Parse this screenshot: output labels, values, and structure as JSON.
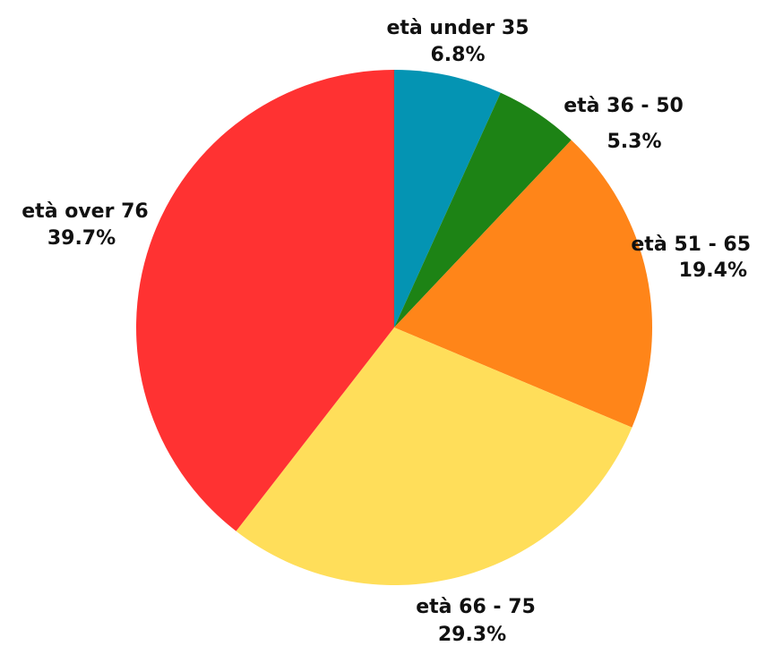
{
  "chart_data": {
    "type": "pie",
    "title": "",
    "start_angle_deg": 0,
    "direction": "clockwise",
    "slices": [
      {
        "label": "età under 35",
        "value": 6.8,
        "value_label": "6.8%",
        "color": "#0494B3"
      },
      {
        "label": "età 36 - 50",
        "value": 5.3,
        "value_label": "5.3%",
        "color": "#1D8315"
      },
      {
        "label": "età 51 - 65",
        "value": 19.4,
        "value_label": "19.4%",
        "color": "#FF8519"
      },
      {
        "label": "età 66 - 75",
        "value": 29.3,
        "value_label": "29.3%",
        "color": "#FFDE5A"
      },
      {
        "label": "età over 76",
        "value": 39.7,
        "value_label": "39.7%",
        "color": "#FF3232"
      }
    ],
    "legend": "none",
    "data_labels": "outside"
  }
}
